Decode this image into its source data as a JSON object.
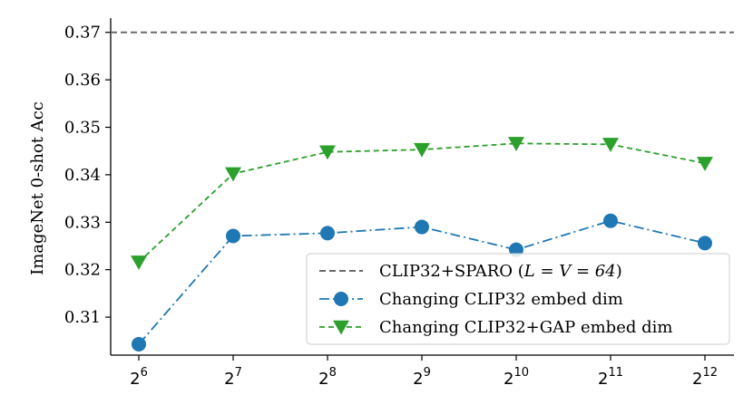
{
  "chart_data": {
    "type": "line",
    "ylabel": "ImageNet 0-shot Acc",
    "xlabel": "",
    "x_scale": "log2",
    "x_ticks": [
      {
        "base": "2",
        "exp": "6",
        "value": 64
      },
      {
        "base": "2",
        "exp": "7",
        "value": 128
      },
      {
        "base": "2",
        "exp": "8",
        "value": 256
      },
      {
        "base": "2",
        "exp": "9",
        "value": 512
      },
      {
        "base": "2",
        "exp": "10",
        "value": 1024
      },
      {
        "base": "2",
        "exp": "11",
        "value": 2048
      },
      {
        "base": "2",
        "exp": "12",
        "value": 4096
      }
    ],
    "y_ticks": [
      "0.31",
      "0.32",
      "0.33",
      "0.34",
      "0.35",
      "0.36",
      "0.37"
    ],
    "ylim": [
      0.302,
      0.373
    ],
    "grid": false,
    "legend_position": "bottom-right",
    "reference_line": {
      "label_prefix": "CLIP32+SPARO (",
      "label_math": "L = V = 64",
      "label_suffix": ")",
      "value": 0.37,
      "color": "#6b6b6b",
      "style": "dashed"
    },
    "series": [
      {
        "name": "Changing CLIP32 embed dim",
        "color": "#1f77b4",
        "marker": "circle",
        "line_style": "dashdot",
        "x": [
          64,
          128,
          256,
          512,
          1024,
          2048,
          4096
        ],
        "values": [
          0.3043,
          0.3271,
          0.3277,
          0.329,
          0.3242,
          0.3303,
          0.3256
        ]
      },
      {
        "name": "Changing CLIP32+GAP embed dim",
        "color": "#2ca02c",
        "marker": "triangle-down",
        "line_style": "dashed",
        "x": [
          64,
          128,
          256,
          512,
          1024,
          2048,
          4096
        ],
        "values": [
          0.3216,
          0.3402,
          0.3448,
          0.3453,
          0.3466,
          0.3464,
          0.3424
        ]
      }
    ]
  }
}
